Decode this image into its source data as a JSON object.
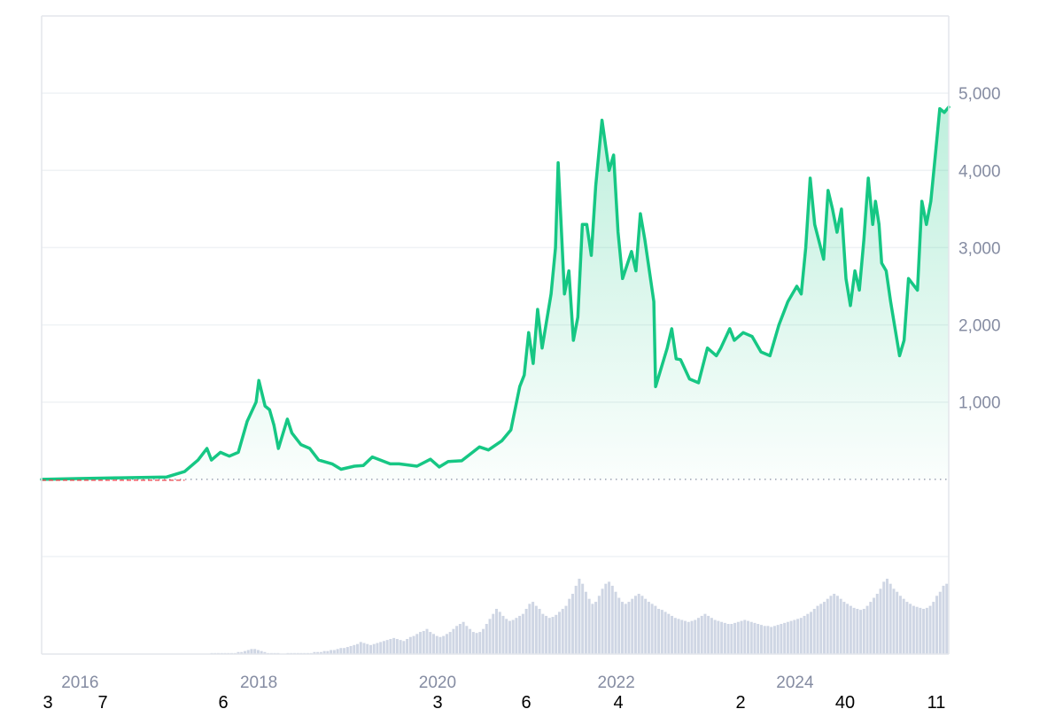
{
  "colors": {
    "line": "#16c784",
    "area_top": "#16c784",
    "grid": "#eff2f5",
    "axis_text": "#858ca2",
    "baseline_dot": "#9aa3b2",
    "early_line": "#ea3943",
    "volume": "#cfd6e4"
  },
  "chart_data": {
    "type": "area",
    "x_unit": "year",
    "xlim": [
      2015.6,
      2025.75
    ],
    "ylim": [
      -1000,
      6000
    ],
    "y_ticks": [
      1000,
      2000,
      3000,
      4000,
      5000
    ],
    "y_tick_labels": [
      "1,000",
      "2,000",
      "3,000",
      "4,000",
      "5,000"
    ],
    "x_ticks": [
      2016,
      2018,
      2020,
      2022,
      2024
    ],
    "x_tick_labels": [
      "2016",
      "2018",
      "2020",
      "2022",
      "2024"
    ],
    "baseline": 0,
    "grid": true,
    "series": [
      {
        "x": [
          2015.6,
          2016.0,
          2016.5,
          2017.0,
          2017.2,
          2017.35,
          2017.45,
          2017.5,
          2017.6,
          2017.7,
          2017.8,
          2017.9,
          2018.0,
          2018.03,
          2018.1,
          2018.15,
          2018.2,
          2018.25,
          2018.35,
          2018.4,
          2018.5,
          2018.6,
          2018.7,
          2018.85,
          2018.95,
          2019.1,
          2019.2,
          2019.3,
          2019.5,
          2019.6,
          2019.8,
          2019.95,
          2020.05,
          2020.15,
          2020.3,
          2020.5,
          2020.6,
          2020.75,
          2020.85,
          2020.95,
          2021.0,
          2021.05,
          2021.1,
          2021.15,
          2021.2,
          2021.3,
          2021.35,
          2021.38,
          2021.45,
          2021.5,
          2021.55,
          2021.6,
          2021.65,
          2021.7,
          2021.75,
          2021.8,
          2021.85,
          2021.87,
          2021.95,
          2022.0,
          2022.05,
          2022.1,
          2022.2,
          2022.25,
          2022.3,
          2022.35,
          2022.45,
          2022.47,
          2022.6,
          2022.65,
          2022.7,
          2022.75,
          2022.85,
          2022.95,
          2023.05,
          2023.15,
          2023.2,
          2023.3,
          2023.35,
          2023.45,
          2023.55,
          2023.65,
          2023.75,
          2023.85,
          2023.95,
          2024.05,
          2024.1,
          2024.15,
          2024.2,
          2024.25,
          2024.35,
          2024.4,
          2024.45,
          2024.5,
          2024.55,
          2024.6,
          2024.65,
          2024.7,
          2024.75,
          2024.8,
          2024.85,
          2024.9,
          2024.93,
          2024.97,
          2025.0,
          2025.05,
          2025.1,
          2025.2,
          2025.25,
          2025.3,
          2025.4,
          2025.45,
          2025.5,
          2025.55,
          2025.6,
          2025.65,
          2025.7,
          2025.75
        ],
        "values": [
          0,
          10,
          20,
          30,
          100,
          250,
          400,
          250,
          350,
          300,
          350,
          750,
          1000,
          1280,
          950,
          900,
          700,
          400,
          780,
          600,
          450,
          400,
          250,
          200,
          130,
          170,
          180,
          290,
          200,
          200,
          170,
          260,
          160,
          230,
          240,
          420,
          380,
          500,
          640,
          1200,
          1350,
          1900,
          1500,
          2200,
          1700,
          2400,
          3000,
          4100,
          2400,
          2700,
          1800,
          2100,
          3300,
          3300,
          2900,
          3800,
          4400,
          4650,
          4000,
          4200,
          3200,
          2600,
          2950,
          2700,
          3440,
          3100,
          2300,
          1200,
          1700,
          1950,
          1560,
          1550,
          1300,
          1250,
          1700,
          1600,
          1700,
          1950,
          1800,
          1900,
          1850,
          1650,
          1600,
          2000,
          2300,
          2500,
          2400,
          3000,
          3900,
          3300,
          2850,
          3740,
          3500,
          3200,
          3500,
          2600,
          2250,
          2700,
          2450,
          3100,
          3900,
          3300,
          3600,
          3300,
          2800,
          2700,
          2300,
          1600,
          1800,
          2600,
          2450,
          3600,
          3300,
          3600,
          4200,
          4800,
          4750,
          4820
        ]
      }
    ],
    "volume": [
      0,
      0,
      0,
      0,
      0,
      0,
      0,
      0,
      0,
      0,
      0,
      0,
      0,
      0,
      0,
      0,
      0,
      0,
      0,
      0,
      0,
      0,
      0,
      0,
      0,
      0,
      0,
      0,
      0,
      0,
      0,
      0,
      0,
      0,
      0,
      0,
      0,
      0,
      0,
      0,
      0,
      0,
      0,
      0,
      0,
      0,
      0,
      0,
      0,
      0,
      0,
      1,
      1,
      1,
      1,
      1,
      1,
      1,
      1,
      2,
      2,
      3,
      4,
      5,
      5,
      4,
      3,
      2,
      1,
      1,
      1,
      1,
      0,
      0,
      1,
      1,
      1,
      1,
      1,
      1,
      1,
      1,
      2,
      2,
      2,
      3,
      3,
      4,
      4,
      5,
      6,
      6,
      7,
      8,
      9,
      10,
      12,
      11,
      10,
      9,
      10,
      11,
      12,
      13,
      14,
      15,
      16,
      15,
      14,
      13,
      15,
      17,
      18,
      20,
      22,
      23,
      25,
      22,
      20,
      18,
      17,
      18,
      20,
      22,
      25,
      28,
      30,
      32,
      28,
      25,
      22,
      21,
      22,
      25,
      30,
      35,
      40,
      45,
      42,
      38,
      35,
      33,
      34,
      36,
      38,
      40,
      45,
      50,
      52,
      48,
      45,
      40,
      38,
      36,
      37,
      39,
      42,
      45,
      48,
      55,
      60,
      68,
      75,
      70,
      62,
      55,
      50,
      52,
      58,
      65,
      70,
      72,
      68,
      62,
      56,
      52,
      50,
      52,
      55,
      58,
      60,
      58,
      55,
      52,
      50,
      48,
      45,
      44,
      42,
      40,
      38,
      36,
      35,
      34,
      33,
      32,
      33,
      34,
      36,
      38,
      40,
      38,
      36,
      34,
      33,
      32,
      31,
      30,
      30,
      31,
      32,
      33,
      34,
      33,
      32,
      31,
      30,
      29,
      28,
      28,
      27,
      28,
      29,
      30,
      31,
      32,
      33,
      34,
      35,
      36,
      38,
      40,
      42,
      45,
      48,
      50,
      52,
      55,
      58,
      60,
      58,
      55,
      52,
      50,
      48,
      46,
      45,
      44,
      45,
      48,
      52,
      56,
      60,
      65,
      72,
      75,
      70,
      65,
      62,
      58,
      55,
      52,
      50,
      48,
      47,
      46,
      45,
      46,
      48,
      52,
      58,
      62,
      68,
      70
    ]
  },
  "misc_labels": [
    "3",
    "7",
    "6",
    "3",
    "6",
    "4",
    "2",
    "40",
    "11"
  ]
}
